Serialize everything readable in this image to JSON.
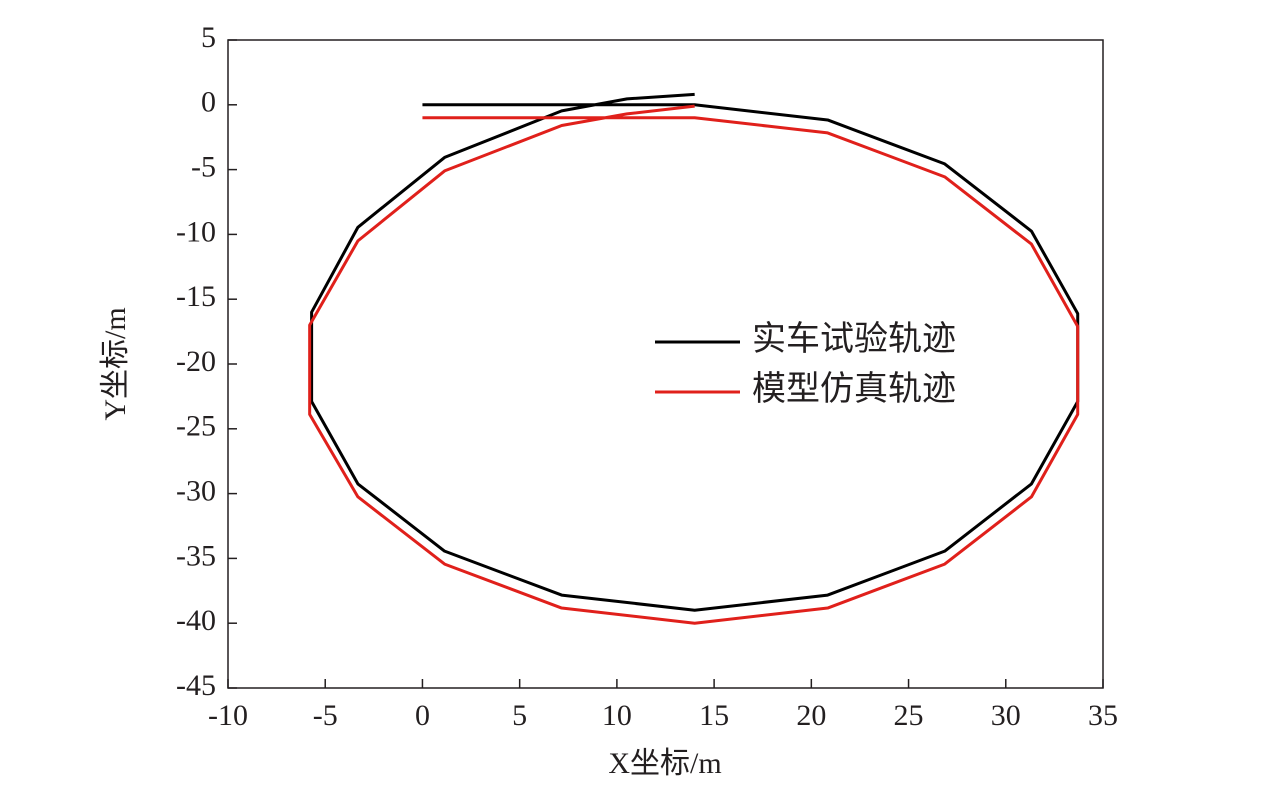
{
  "chart_data": {
    "type": "line",
    "xlabel": "X坐标/m",
    "ylabel": "Y坐标/m",
    "xlim": [
      -10,
      35
    ],
    "ylim": [
      -45,
      5
    ],
    "xticks": [
      -10,
      -5,
      0,
      5,
      10,
      15,
      20,
      25,
      30,
      35
    ],
    "yticks": [
      5,
      0,
      -5,
      -10,
      -15,
      -20,
      -25,
      -30,
      -35,
      -40,
      -45
    ],
    "grid": false,
    "legend": "right",
    "series": [
      {
        "name": "实车试验轨迹",
        "color": "#000000",
        "x": [
          0,
          7,
          14,
          20.84,
          26.86,
          31.32,
          33.7,
          33.7,
          31.32,
          26.86,
          20.84,
          14,
          7.16,
          1.14,
          -3.32,
          -5.7,
          -5.7,
          -3.32,
          1.14,
          7.16,
          10.52,
          14
        ],
        "values": [
          0,
          0,
          0,
          -1.17,
          -4.56,
          -9.75,
          -16.11,
          -22.89,
          -29.25,
          -34.44,
          -37.83,
          -39,
          -37.83,
          -34.44,
          -29.25,
          -22.89,
          -16.0,
          -9.45,
          -4.06,
          -0.47,
          0.46,
          0.8
        ]
      },
      {
        "name": "模型仿真轨迹",
        "color": "#e0201b",
        "x": [
          0,
          7,
          14,
          20.84,
          26.86,
          31.32,
          33.7,
          33.7,
          31.32,
          26.86,
          20.84,
          14,
          7.16,
          1.14,
          -3.32,
          -5.8,
          -5.8,
          -3.32,
          1.14,
          7.16,
          10.52,
          14
        ],
        "values": [
          -1,
          -1,
          -1,
          -2.17,
          -5.56,
          -10.75,
          -17.11,
          -23.89,
          -30.25,
          -35.44,
          -38.83,
          -40,
          -38.83,
          -35.44,
          -30.25,
          -23.89,
          -17.0,
          -10.5,
          -5.1,
          -1.6,
          -0.7,
          -0.1
        ]
      }
    ]
  }
}
